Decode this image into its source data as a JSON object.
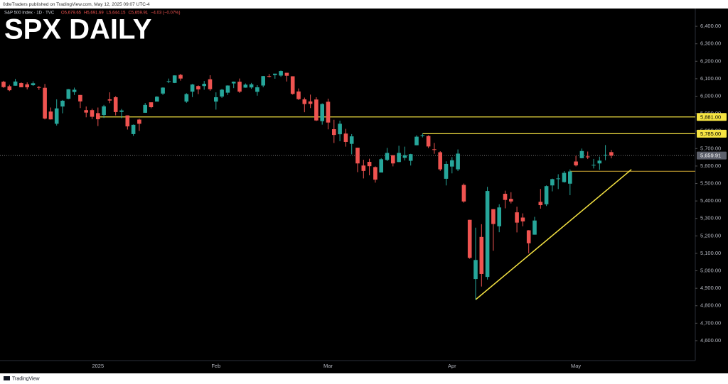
{
  "header": {
    "publisher": "0dteTraders published on TradingView.com, May 12, 2025 09:07 UTC-4"
  },
  "footer": {
    "brand": "TradingView"
  },
  "chart_data": {
    "type": "candlestick",
    "title": "SPX DAILY",
    "symbol": "S&P 500 Index · 1D · TVC",
    "legend_values": [
      "O5,679.65",
      "H5,691.69",
      "L5,644.15",
      "C5,659.91",
      "−4.03 (−0.07%)"
    ],
    "categories": [
      null,
      null,
      null,
      null,
      null,
      null,
      null,
      null,
      null,
      null,
      null,
      null,
      null,
      null,
      null,
      null,
      "2025",
      null,
      null,
      null,
      null,
      null,
      null,
      null,
      null,
      null,
      null,
      null,
      null,
      null,
      null,
      null,
      null,
      null,
      null,
      null,
      "Feb",
      null,
      null,
      null,
      null,
      null,
      null,
      null,
      null,
      null,
      null,
      null,
      null,
      null,
      null,
      null,
      null,
      null,
      null,
      "Mar",
      null,
      null,
      null,
      null,
      null,
      null,
      null,
      null,
      null,
      null,
      null,
      null,
      null,
      null,
      null,
      null,
      null,
      null,
      null,
      null,
      "Apr",
      null,
      null,
      null,
      null,
      null,
      null,
      null,
      null,
      null,
      null,
      null,
      null,
      null,
      null,
      null,
      null,
      null,
      null,
      null,
      null,
      "May",
      null,
      null,
      null,
      null,
      null,
      null
    ],
    "open": [
      6083,
      6057,
      6060,
      6075,
      6068,
      6063,
      6052,
      6048,
      5912,
      5842,
      5941,
      5985,
      6024,
      6007,
      5920,
      5920,
      5903,
      5892,
      5982,
      5994,
      5910,
      5890,
      5783,
      5866,
      5905,
      5965,
      5969,
      6015,
      6082,
      6076,
      6122,
      5969,
      6026,
      6058,
      6058,
      6097,
      5969,
      5998,
      6020,
      6073,
      6083,
      6049,
      6050,
      6025,
      6061,
      6115,
      6121,
      6118,
      6134,
      6114,
      6027,
      5982,
      5970,
      5981,
      5857,
      5968,
      5811,
      5782,
      5786,
      5727,
      5705,
      5603,
      5624,
      5594,
      5563,
      5635,
      5662,
      5623,
      5647,
      5630,
      5719,
      5775,
      5772,
      5696,
      5679,
      5527,
      5597,
      5581,
      5492,
      5292,
      4953,
      5194,
      4965,
      5353,
      5255,
      5441,
      5412,
      5335,
      5305,
      5232,
      5207,
      5395,
      5381,
      5489,
      5529,
      5508,
      5499,
      5626,
      5645,
      5655,
      5607,
      5615,
      5663,
      5679.65
    ],
    "high": [
      6088,
      6065,
      6099,
      6079,
      6079,
      6085,
      6058,
      6070,
      5935,
      5982,
      5978,
      6041,
      6049,
      6007,
      5941,
      5929,
      5935,
      5950,
      6022,
      6000,
      5927,
      5890,
      5838,
      5871,
      5961,
      5965,
      6000,
      6051,
      6101,
      6119,
      6128,
      6017,
      6070,
      6062,
      6087,
      6120,
      6022,
      6042,
      6062,
      6084,
      6101,
      6073,
      6076,
      6063,
      6116,
      6127,
      6129,
      6147,
      6134,
      6114,
      6044,
      5992,
      6009,
      5994,
      5959,
      5986,
      5865,
      5860,
      5813,
      5783,
      5705,
      5636,
      5642,
      5598,
      5645,
      5704,
      5662,
      5716,
      5711,
      5670,
      5776,
      5786,
      5776,
      5732,
      5685,
      5627,
      5651,
      5695,
      5500,
      5292,
      5247,
      5267,
      5481,
      5353,
      5381,
      5459,
      5450,
      5367,
      5329,
      5233,
      5309,
      5469,
      5489,
      5528,
      5553,
      5571,
      5581,
      5659,
      5700,
      5683,
      5641,
      5654,
      5720,
      5691.69
    ],
    "low": [
      6048,
      6029,
      6060,
      6051,
      6039,
      6059,
      6036,
      5867,
      5866,
      5832,
      5902,
      5983,
      6007,
      5932,
      5879,
      5869,
      5829,
      5875,
      5960,
      5890,
      5874,
      5809,
      5773,
      5801,
      5905,
      5931,
      5970,
      6007,
      6075,
      6075,
      6089,
      5962,
      5995,
      6012,
      6037,
      6031,
      5923,
      5990,
      6007,
      6046,
      6019,
      6048,
      6042,
      6003,
      6051,
      6107,
      6100,
      6111,
      6084,
      6009,
      5978,
      5908,
      5932,
      5858,
      5837,
      5810,
      5732,
      5742,
      5711,
      5667,
      5565,
      5529,
      5547,
      5505,
      5563,
      5628,
      5598,
      5622,
      5632,
      5603,
      5719,
      5764,
      5703,
      5670,
      5572,
      5489,
      5558,
      5571,
      5390,
      5069,
      4835,
      4910,
      4950,
      5115,
      5221,
      5358,
      5386,
      5220,
      5255,
      5101,
      5207,
      5356,
      5371,
      5455,
      5468,
      5505,
      5433,
      5598,
      5644,
      5640,
      5586,
      5579,
      5633,
      5644.15
    ],
    "close": [
      6052,
      6034,
      6084,
      6051,
      6051,
      6074,
      6050,
      5872,
      5867,
      5930,
      5974,
      6040,
      6037,
      5970,
      5906,
      5882,
      5868,
      5942,
      5975,
      5909,
      5918,
      5827,
      5836,
      5842,
      5950,
      5937,
      5997,
      6049,
      6086,
      6119,
      6101,
      6012,
      6067,
      6039,
      6071,
      6040,
      5994,
      6037,
      6061,
      6083,
      6026,
      6066,
      6068,
      6051,
      6115,
      6114,
      6129,
      6144,
      6117,
      6013,
      5983,
      5955,
      5956,
      5861,
      5955,
      5849,
      5778,
      5842,
      5738,
      5770,
      5615,
      5572,
      5599,
      5522,
      5639,
      5675,
      5615,
      5675,
      5662,
      5668,
      5768,
      5777,
      5712,
      5693,
      5581,
      5612,
      5633,
      5671,
      5397,
      5074,
      5062,
      4982,
      5457,
      5268,
      5363,
      5406,
      5397,
      5276,
      5283,
      5158,
      5288,
      5376,
      5485,
      5525,
      5529,
      5561,
      5569,
      5604,
      5686,
      5650,
      5607,
      5631,
      5664,
      5659.91
    ],
    "up_color": "#26a69a",
    "down_color": "#ef5350",
    "ylim": [
      4486,
      6502
    ],
    "yticks": [
      {
        "value": 4600,
        "label": "4,600.00"
      },
      {
        "value": 4700,
        "label": "4,700.00"
      },
      {
        "value": 4800,
        "label": "4,800.00"
      },
      {
        "value": 4900,
        "label": "4,900.00"
      },
      {
        "value": 5000,
        "label": "5,000.00"
      },
      {
        "value": 5100,
        "label": "5,100.00"
      },
      {
        "value": 5200,
        "label": "5,200.00"
      },
      {
        "value": 5300,
        "label": "5,300.00"
      },
      {
        "value": 5400,
        "label": "5,400.00"
      },
      {
        "value": 5500,
        "label": "5,500.00"
      },
      {
        "value": 5600,
        "label": "5,600.00"
      },
      {
        "value": 5700,
        "label": "5,700.00"
      },
      {
        "value": 5800,
        "label": "5,800.00"
      },
      {
        "value": 5900,
        "label": "5,900.00"
      },
      {
        "value": 6000,
        "label": "6,000.00"
      },
      {
        "value": 6100,
        "label": "6,100.00"
      },
      {
        "value": 6200,
        "label": "6,200.00"
      },
      {
        "value": 6300,
        "label": "6,300.00"
      },
      {
        "value": 6400,
        "label": "6,400.00"
      }
    ],
    "levels": [
      {
        "value": 5881,
        "label": "5,881.00",
        "from_index": 16,
        "color": "#f5e342"
      },
      {
        "value": 5785,
        "label": "5,785.00",
        "from_index": 71,
        "color": "#f5e342"
      },
      {
        "value": 5570,
        "from_index": 96,
        "color": "#b8962e"
      }
    ],
    "last_price": {
      "value": 5659.91,
      "label": "5,659.91"
    },
    "trendline": {
      "from": [
        80,
        4835
      ],
      "to": [
        106.4,
        5580
      ],
      "color": "#f5e342"
    },
    "grid": false
  }
}
